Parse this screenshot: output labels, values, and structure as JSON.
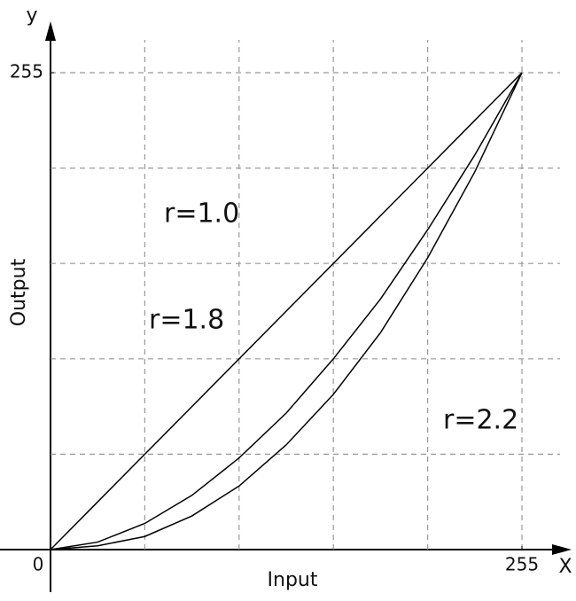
{
  "chart_data": {
    "type": "line",
    "x_label": "Input",
    "y_label": "Output",
    "x_axis_name": "X",
    "y_axis_name": "y",
    "x": [
      0,
      25.5,
      51,
      76.5,
      102,
      127.5,
      153,
      178.5,
      204,
      229.5,
      255
    ],
    "series": [
      {
        "name": "r=1.0",
        "color": "#000000",
        "values": [
          0,
          25.5,
          51,
          76.5,
          102,
          127.5,
          153,
          178.5,
          204,
          229.5,
          255
        ]
      },
      {
        "name": "r=1.8",
        "color": "#000000",
        "values": [
          0,
          4,
          14,
          29,
          49,
          73,
          102,
          134,
          171,
          211,
          255
        ]
      },
      {
        "name": "r=2.2",
        "color": "#000000",
        "values": [
          0,
          2,
          7,
          18,
          34,
          56,
          83,
          116,
          156,
          202,
          255
        ]
      }
    ],
    "xlim": [
      0,
      255
    ],
    "ylim": [
      0,
      255
    ],
    "xticks": [
      0,
      255
    ],
    "yticks": [
      0,
      255
    ],
    "grid": true
  }
}
